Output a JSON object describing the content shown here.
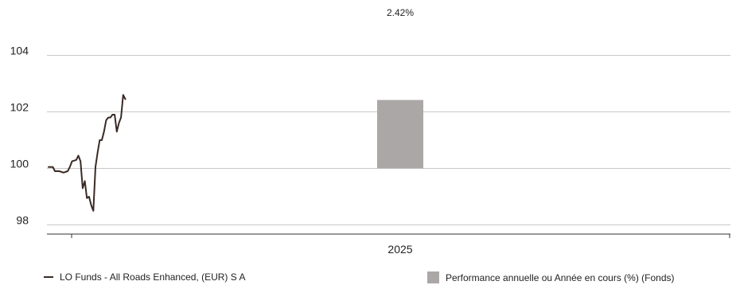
{
  "chart_data": {
    "type": "bar+line",
    "title": "",
    "ylim": [
      97.5,
      105
    ],
    "yticks": [
      98,
      100,
      102,
      104
    ],
    "y_tick_labels": [
      "98",
      "100",
      "102",
      "104"
    ],
    "categories": [
      "2025"
    ],
    "grid": "horizontal",
    "legend_position": "bottom",
    "bar_series": {
      "name": "Performance annuelle ou Année en cours (%) (Fonds)",
      "color": "#aba7a6",
      "baseline": 100,
      "values": [
        2.42
      ],
      "value_labels": [
        "2.42%"
      ]
    },
    "line_series": {
      "name": "LO Funds - All Roads Enhanced, (EUR) S A",
      "color": "#3a2a26",
      "points": [
        [
          0,
          100.05
        ],
        [
          2,
          100.05
        ],
        [
          3,
          99.9
        ],
        [
          5,
          99.9
        ],
        [
          7,
          99.85
        ],
        [
          9,
          99.9
        ],
        [
          10,
          100.05
        ],
        [
          11,
          100.25
        ],
        [
          13,
          100.3
        ],
        [
          14,
          100.45
        ],
        [
          15,
          100.25
        ],
        [
          16,
          99.3
        ],
        [
          17,
          99.55
        ],
        [
          18,
          98.95
        ],
        [
          19,
          99.0
        ],
        [
          20,
          98.7
        ],
        [
          21,
          98.5
        ],
        [
          22,
          100.05
        ],
        [
          23,
          100.55
        ],
        [
          24,
          101.0
        ],
        [
          25,
          101.0
        ],
        [
          26,
          101.3
        ],
        [
          27,
          101.7
        ],
        [
          28,
          101.8
        ],
        [
          29,
          101.8
        ],
        [
          30,
          101.9
        ],
        [
          31,
          101.9
        ],
        [
          32,
          101.3
        ],
        [
          33,
          101.6
        ],
        [
          34,
          101.8
        ],
        [
          35,
          102.6
        ],
        [
          36,
          102.45
        ]
      ]
    }
  }
}
